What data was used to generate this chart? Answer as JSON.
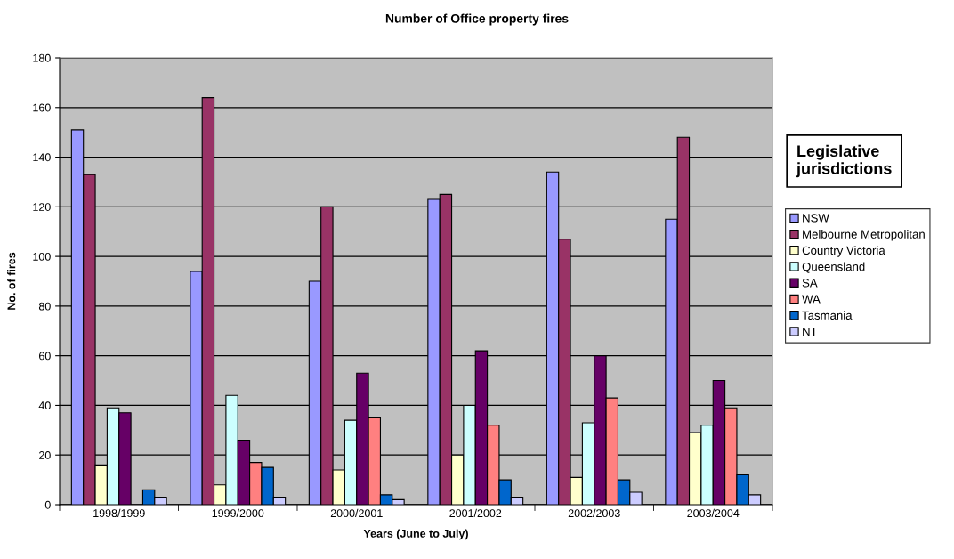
{
  "chart_data": {
    "type": "bar",
    "title": "Number of Office property fires",
    "xlabel": "Years (June to July)",
    "ylabel": "No. of fires",
    "legend_title": "Legislative jurisdictions",
    "categories": [
      "1998/1999",
      "1999/2000",
      "2000/2001",
      "2001/2002",
      "2002/2003",
      "2003/2004"
    ],
    "series": [
      {
        "name": "NSW",
        "color": "#9999ff",
        "values": [
          151,
          94,
          90,
          123,
          134,
          115
        ]
      },
      {
        "name": "Melbourne Metropolitan",
        "color": "#993366",
        "values": [
          133,
          164,
          120,
          125,
          107,
          148
        ]
      },
      {
        "name": "Country Victoria",
        "color": "#ffffcc",
        "values": [
          16,
          8,
          14,
          20,
          11,
          29
        ]
      },
      {
        "name": "Queensland",
        "color": "#ccffff",
        "values": [
          39,
          44,
          34,
          40,
          33,
          32
        ]
      },
      {
        "name": "SA",
        "color": "#660066",
        "values": [
          37,
          26,
          53,
          62,
          60,
          50
        ]
      },
      {
        "name": "WA",
        "color": "#ff8080",
        "values": [
          null,
          17,
          35,
          32,
          43,
          39
        ]
      },
      {
        "name": "Tasmania",
        "color": "#0066cc",
        "values": [
          6,
          15,
          4,
          10,
          10,
          12
        ]
      },
      {
        "name": "NT",
        "color": "#ccccff",
        "values": [
          3,
          3,
          2,
          3,
          5,
          4
        ]
      }
    ],
    "ylim": [
      0,
      180
    ],
    "yticks": [
      0,
      20,
      40,
      60,
      80,
      100,
      120,
      140,
      160,
      180
    ],
    "grid": "y",
    "legend": "right"
  }
}
